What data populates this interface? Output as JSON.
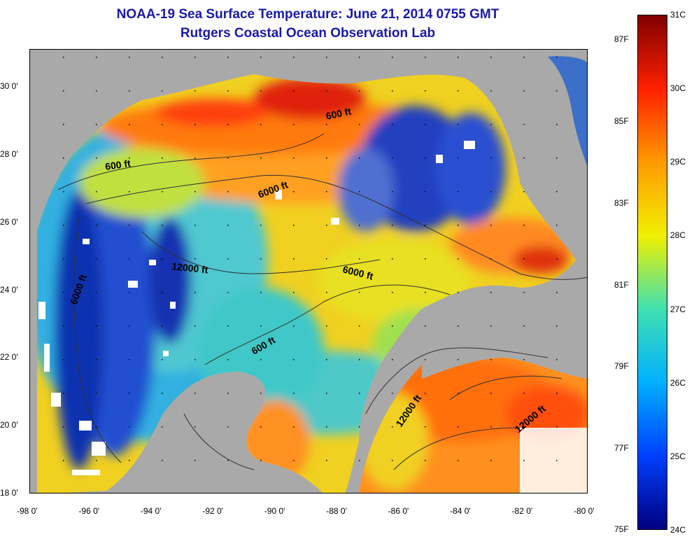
{
  "title": "NOAA-19 Sea Surface Temperature:  June 21, 2014 0755 GMT",
  "subtitle": "Rutgers Coastal Ocean Observation Lab",
  "x_ticks": [
    "-98 0'",
    "-96 0'",
    "-94 0'",
    "-92 0'",
    "-90 0'",
    "-88 0'",
    "-86 0'",
    "-84 0'",
    "-82 0'",
    "-80 0'"
  ],
  "y_ticks": [
    "30 0'",
    "28 0'",
    "26 0'",
    "24 0'",
    "22 0'",
    "20 0'",
    "18 0'"
  ],
  "colorbar": {
    "celsius": [
      "31C",
      "30C",
      "29C",
      "28C",
      "27C",
      "26C",
      "25C",
      "24C"
    ],
    "fahrenheit": [
      "87F",
      "85F",
      "83F",
      "81F",
      "79F",
      "77F",
      "75F"
    ],
    "colors": [
      "#800000",
      "#ff2000",
      "#ff9a00",
      "#f0f000",
      "#40e0b0",
      "#00b0ff",
      "#0040ff",
      "#000080"
    ]
  },
  "contour_labels": {
    "c1": "600 ft",
    "c2": "600 ft",
    "c3": "6000 ft",
    "c4": "12000 ft",
    "c5": "6000 ft",
    "c6": "6000 ft",
    "c7": "600 ft",
    "c8": "12000 ft",
    "c9": "12000 ft"
  },
  "colors": {
    "land": "#a9a9a9",
    "title": "#1a1aa8"
  }
}
